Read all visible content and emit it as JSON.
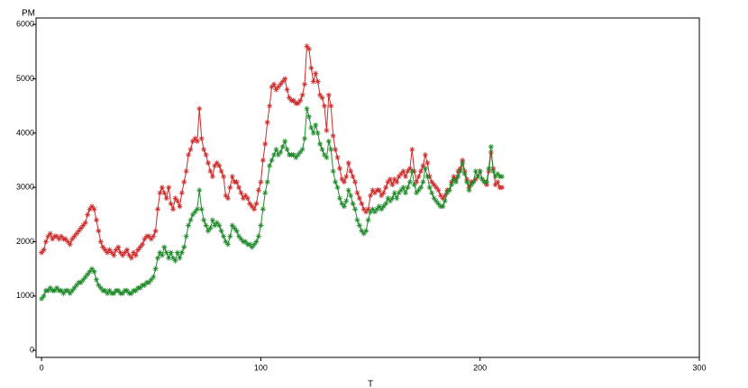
{
  "chart_data": {
    "type": "line",
    "ylabel": "PM",
    "xlabel": "T",
    "xlim": [
      -2.5,
      300
    ],
    "ylim": [
      -130,
      6120
    ],
    "xticks": [
      0,
      100,
      200,
      300
    ],
    "yticks": [
      0,
      1000,
      2000,
      3000,
      4000,
      5000,
      6000
    ],
    "x": [
      0,
      1,
      2,
      3,
      4,
      5,
      6,
      7,
      8,
      9,
      10,
      11,
      12,
      13,
      14,
      15,
      16,
      17,
      18,
      19,
      20,
      21,
      22,
      23,
      24,
      25,
      26,
      27,
      28,
      29,
      30,
      31,
      32,
      33,
      34,
      35,
      36,
      37,
      38,
      39,
      40,
      41,
      42,
      43,
      44,
      45,
      46,
      47,
      48,
      49,
      50,
      51,
      52,
      53,
      54,
      55,
      56,
      57,
      58,
      59,
      60,
      61,
      62,
      63,
      64,
      65,
      66,
      67,
      68,
      69,
      70,
      71,
      72,
      73,
      74,
      75,
      76,
      77,
      78,
      79,
      80,
      81,
      82,
      83,
      84,
      85,
      86,
      87,
      88,
      89,
      90,
      91,
      92,
      93,
      94,
      95,
      96,
      97,
      98,
      99,
      100,
      101,
      102,
      103,
      104,
      105,
      106,
      107,
      108,
      109,
      110,
      111,
      112,
      113,
      114,
      115,
      116,
      117,
      118,
      119,
      120,
      121,
      122,
      123,
      124,
      125,
      126,
      127,
      128,
      129,
      130,
      131,
      132,
      133,
      134,
      135,
      136,
      137,
      138,
      139,
      140,
      141,
      142,
      143,
      144,
      145,
      146,
      147,
      148,
      149,
      150,
      151,
      152,
      153,
      154,
      155,
      156,
      157,
      158,
      159,
      160,
      161,
      162,
      163,
      164,
      165,
      166,
      167,
      168,
      169,
      170,
      171,
      172,
      173,
      174,
      175,
      176,
      177,
      178,
      179,
      180,
      181,
      182,
      183,
      184,
      185,
      186,
      187,
      188,
      189,
      190,
      191,
      192,
      193,
      194,
      195,
      196,
      197,
      198,
      199,
      200,
      201,
      202,
      203,
      204,
      205,
      206,
      207,
      208,
      209,
      210
    ],
    "series": [
      {
        "color": "#cc2a2a",
        "values": [
          1800,
          1850,
          2000,
          2100,
          2150,
          2050,
          2100,
          2100,
          2050,
          2100,
          2050,
          2050,
          2000,
          1950,
          2050,
          2100,
          2150,
          2200,
          2250,
          2300,
          2350,
          2500,
          2600,
          2650,
          2600,
          2400,
          2200,
          2000,
          1900,
          1850,
          1800,
          1850,
          1800,
          1750,
          1850,
          1900,
          1800,
          1750,
          1800,
          1850,
          1750,
          1700,
          1800,
          1750,
          1850,
          1900,
          1950,
          2050,
          2100,
          2100,
          2050,
          2100,
          2200,
          2600,
          2900,
          3000,
          2900,
          2800,
          3000,
          2700,
          2600,
          2800,
          2750,
          2650,
          2900,
          3100,
          3300,
          3600,
          3700,
          3850,
          3900,
          3850,
          4450,
          3900,
          3700,
          3600,
          3450,
          3300,
          3200,
          3400,
          3450,
          3400,
          3300,
          3200,
          2850,
          2800,
          3000,
          3200,
          3100,
          3100,
          3000,
          2900,
          2800,
          2850,
          2800,
          2700,
          2650,
          2600,
          2700,
          2950,
          3100,
          3500,
          3800,
          4200,
          4500,
          4850,
          4900,
          4800,
          4850,
          4900,
          4950,
          5000,
          4800,
          4650,
          4600,
          4600,
          4550,
          4550,
          4600,
          4700,
          4900,
          5600,
          5550,
          5200,
          4950,
          5100,
          4950,
          4700,
          4650,
          4500,
          4050,
          4700,
          4500,
          3950,
          3700,
          3550,
          3350,
          3150,
          3100,
          3200,
          3450,
          3300,
          3200,
          3100,
          2900,
          2800,
          2700,
          2600,
          2550,
          2600,
          2850,
          2950,
          2900,
          2950,
          2950,
          2850,
          2900,
          3000,
          3100,
          3150,
          3050,
          3150,
          3100,
          3200,
          3250,
          3300,
          3200,
          3300,
          3350,
          3700,
          3300,
          3100,
          3200,
          3300,
          3400,
          3600,
          3450,
          3200,
          3100,
          3050,
          3000,
          2950,
          2850,
          2800,
          2850,
          2950,
          2950,
          3100,
          3200,
          3150,
          3300,
          3350,
          3500,
          3300,
          3150,
          3000,
          3100,
          3100,
          3150,
          3200,
          3300,
          3150,
          3100,
          3050,
          3300,
          3650,
          3350,
          3050,
          3100,
          3000,
          3000
        ]
      },
      {
        "color": "#1f8a2a",
        "values": [
          950,
          1000,
          1100,
          1100,
          1150,
          1100,
          1100,
          1150,
          1100,
          1100,
          1050,
          1100,
          1100,
          1050,
          1100,
          1150,
          1200,
          1250,
          1250,
          1300,
          1350,
          1400,
          1450,
          1500,
          1450,
          1300,
          1200,
          1150,
          1100,
          1100,
          1050,
          1100,
          1050,
          1050,
          1100,
          1100,
          1050,
          1050,
          1100,
          1100,
          1050,
          1050,
          1100,
          1100,
          1150,
          1150,
          1200,
          1200,
          1250,
          1250,
          1300,
          1350,
          1500,
          1700,
          1800,
          1750,
          1900,
          1800,
          1700,
          1800,
          1700,
          1650,
          1800,
          1700,
          1800,
          1900,
          2100,
          2300,
          2400,
          2500,
          2550,
          2600,
          2950,
          2600,
          2400,
          2300,
          2200,
          2250,
          2400,
          2300,
          2350,
          2300,
          2200,
          2100,
          2000,
          1950,
          2100,
          2300,
          2250,
          2200,
          2100,
          2050,
          2000,
          2000,
          1950,
          1950,
          1900,
          1950,
          2000,
          2100,
          2300,
          2600,
          2900,
          3100,
          3400,
          3500,
          3600,
          3700,
          3600,
          3650,
          3750,
          3850,
          3700,
          3600,
          3600,
          3600,
          3550,
          3600,
          3650,
          3700,
          3900,
          4450,
          4300,
          4100,
          4000,
          4150,
          4000,
          3800,
          3700,
          3600,
          3550,
          3850,
          3700,
          3300,
          3100,
          3000,
          2800,
          2700,
          2650,
          2750,
          2950,
          2850,
          2700,
          2600,
          2400,
          2300,
          2200,
          2150,
          2200,
          2400,
          2550,
          2600,
          2550,
          2600,
          2650,
          2600,
          2650,
          2700,
          2800,
          2750,
          2800,
          2900,
          2800,
          2900,
          2950,
          3000,
          2900,
          3000,
          3100,
          3300,
          3050,
          2900,
          2950,
          3000,
          3100,
          3350,
          3200,
          3000,
          2900,
          2800,
          2750,
          2700,
          2650,
          2650,
          2750,
          2900,
          2950,
          3050,
          3150,
          3100,
          3200,
          3300,
          3450,
          3250,
          3100,
          2950,
          3050,
          3100,
          3300,
          3200,
          3300,
          3150,
          3100,
          3100,
          3350,
          3750,
          3300,
          3200,
          3250,
          3200,
          3200
        ]
      }
    ]
  }
}
